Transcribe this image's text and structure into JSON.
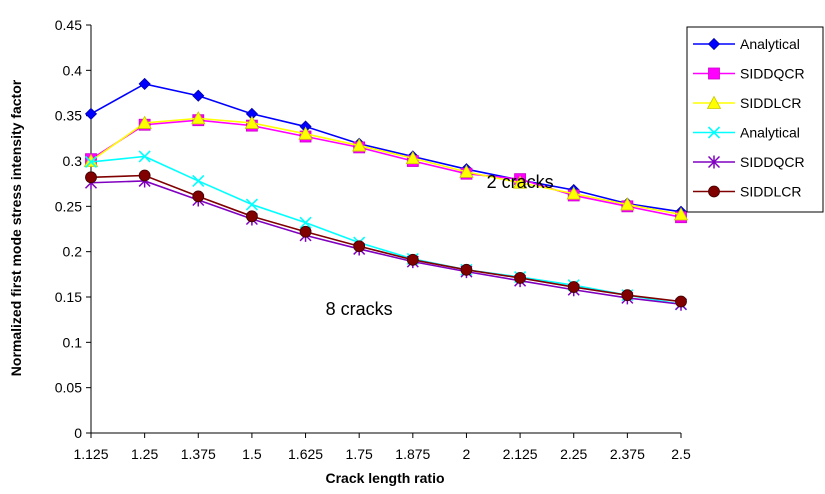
{
  "chart_data": {
    "type": "line",
    "title": "",
    "xlabel": "Crack length ratio",
    "ylabel": "Normalized first mode stress intensity factor",
    "categories": [
      "1.125",
      "1.25",
      "1.375",
      "1.5",
      "1.625",
      "1.75",
      "1.875",
      "2",
      "2.125",
      "2.25",
      "2.375",
      "2.5"
    ],
    "ylim": [
      0,
      0.45
    ],
    "yticks": [
      "0",
      "0.05",
      "0.1",
      "0.15",
      "0.2",
      "0.25",
      "0.3",
      "0.35",
      "0.4",
      "0.45"
    ],
    "grid": false,
    "legend": "right",
    "series": [
      {
        "name": "Analytical",
        "color": "#0000ff",
        "marker": "diamond",
        "values": [
          0.352,
          0.385,
          0.372,
          0.352,
          0.338,
          0.319,
          0.305,
          0.291,
          0.279,
          0.268,
          0.253,
          0.244
        ]
      },
      {
        "name": "SIDDQCR",
        "color": "#ff00ff",
        "marker": "square",
        "values": [
          0.302,
          0.34,
          0.345,
          0.339,
          0.327,
          0.315,
          0.3,
          0.286,
          0.28,
          0.262,
          0.25,
          0.238
        ]
      },
      {
        "name": "SIDDLCR",
        "color": "#ffff00",
        "marker": "triangle",
        "values": [
          0.3,
          0.342,
          0.347,
          0.342,
          0.33,
          0.317,
          0.303,
          0.288,
          0.276,
          0.264,
          0.252,
          0.241
        ]
      },
      {
        "name": "Analytical",
        "color": "#00ffff",
        "marker": "x",
        "values": [
          0.299,
          0.305,
          0.278,
          0.252,
          0.232,
          0.21,
          0.192,
          0.18,
          0.172,
          0.163,
          0.152,
          0.142
        ]
      },
      {
        "name": "SIDDQCR",
        "color": "#8000c0",
        "marker": "star",
        "values": [
          0.276,
          0.278,
          0.257,
          0.236,
          0.218,
          0.203,
          0.189,
          0.178,
          0.168,
          0.158,
          0.149,
          0.142
        ]
      },
      {
        "name": "SIDDLCR",
        "color": "#800000",
        "marker": "circle",
        "values": [
          0.282,
          0.284,
          0.261,
          0.239,
          0.222,
          0.206,
          0.191,
          0.18,
          0.171,
          0.161,
          0.152,
          0.145
        ]
      }
    ],
    "annotations": [
      {
        "text": "2 cracks",
        "x": 2.125,
        "y": 0.27
      },
      {
        "text": "8 cracks",
        "x": 1.75,
        "y": 0.13
      }
    ]
  }
}
